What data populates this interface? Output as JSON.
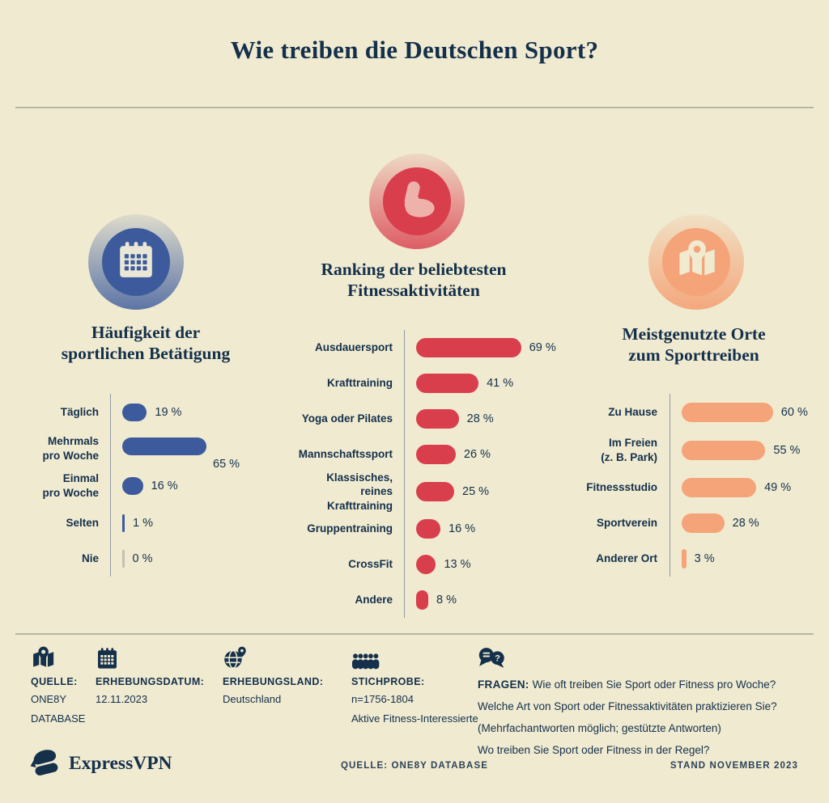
{
  "title": "Wie treiben die Deutschen Sport?",
  "colors": {
    "background": "#f0ead1",
    "ink": "#14304a",
    "blue": "#3d5b9c",
    "red": "#d93e4d",
    "orange": "#f4a478",
    "zero_bar": "#c3c0ae"
  },
  "chart_data": [
    {
      "type": "bar",
      "orientation": "horizontal",
      "title": "Häufigkeit der\nsportlichen Betätigung",
      "icon": "calendar-icon",
      "bar_color": "#3d5b9c",
      "unit": "%",
      "xlim": [
        0,
        100
      ],
      "categories": [
        "Täglich",
        "Mehrmals\npro Woche",
        "Einmal\npro Woche",
        "Selten",
        "Nie"
      ],
      "values": [
        19,
        65,
        16,
        1,
        0
      ],
      "value_labels": [
        "19 %",
        "65 %",
        "16 %",
        "1 %",
        "0 %"
      ],
      "below_value_index": 1,
      "zero_bar_color": "#c3c0ae"
    },
    {
      "type": "bar",
      "orientation": "horizontal",
      "title": "Ranking der beliebtesten\nFitnessaktivitäten",
      "icon": "bicep-icon",
      "bar_color": "#d93e4d",
      "unit": "%",
      "xlim": [
        0,
        100
      ],
      "categories": [
        "Ausdauersport",
        "Krafttraining",
        "Yoga oder Pilates",
        "Mannschaftssport",
        "Klassisches, reines\nKrafttraining",
        "Gruppentraining",
        "CrossFit",
        "Andere"
      ],
      "values": [
        69,
        41,
        28,
        26,
        25,
        16,
        13,
        8
      ],
      "value_labels": [
        "69 %",
        "41 %",
        "28 %",
        "26 %",
        "25 %",
        "16 %",
        "13 %",
        "8 %"
      ]
    },
    {
      "type": "bar",
      "orientation": "horizontal",
      "title": "Meistgenutzte Orte\nzum Sporttreiben",
      "icon": "map-icon",
      "bar_color": "#f4a478",
      "unit": "%",
      "xlim": [
        0,
        100
      ],
      "categories": [
        "Zu Hause",
        "Im Freien\n(z. B. Park)",
        "Fitnessstudio",
        "Sportverein",
        "Anderer Ort"
      ],
      "values": [
        60,
        55,
        49,
        28,
        3
      ],
      "value_labels": [
        "60 %",
        "55 %",
        "49 %",
        "28 %",
        "3 %"
      ]
    }
  ],
  "footer": {
    "items": [
      {
        "icon": "map-pin-icon",
        "label": "QUELLE:",
        "lines": [
          "ONE8Y",
          "DATABASE"
        ]
      },
      {
        "icon": "calendar-icon",
        "label": "ERHEBUNGSDATUM:",
        "lines": [
          "12.11.2023"
        ]
      },
      {
        "icon": "globe-icon",
        "label": "ERHEBUNGSLAND:",
        "lines": [
          "Deutschland"
        ]
      },
      {
        "icon": "people-icon",
        "label": "STICHPROBE:",
        "lines": [
          "n=1756-1804",
          "Aktive Fitness-Interessierte"
        ]
      },
      {
        "icon": "speech-icon",
        "label": "FRAGEN:",
        "inline": true,
        "lines": [
          "Wie oft treiben Sie Sport oder Fitness pro Woche?",
          "Welche Art von Sport oder Fitnessaktivitäten praktizieren Sie?",
          "(Mehrfachantworten möglich; gestützte Antworten)",
          "Wo treiben Sie Sport oder Fitness in der Regel?"
        ]
      }
    ]
  },
  "brandbar": {
    "brand": "ExpressVPN",
    "source": "QUELLE: ONE8Y DATABASE",
    "date": "STAND NOVEMBER 2023"
  }
}
